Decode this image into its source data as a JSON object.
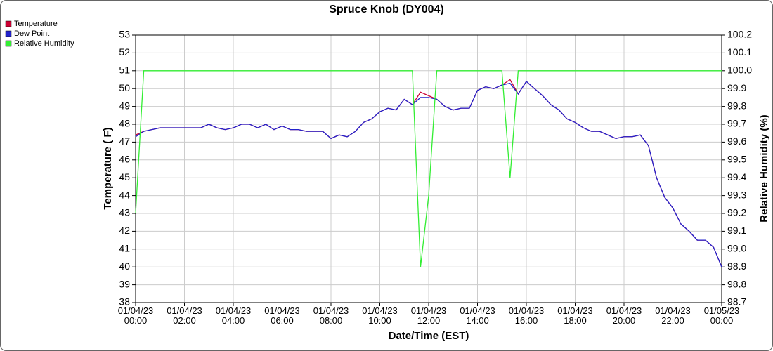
{
  "chart_data": {
    "type": "line",
    "title": "Spruce Knob (DY004)",
    "xlabel": "Date/Time (EST)",
    "ylabel": "Temperature ( F)",
    "y2label": "Relative Humidity (%)",
    "x": [
      "01/04/23 00:00",
      "01/04/23 00:20",
      "01/04/23 00:40",
      "01/04/23 01:00",
      "01/04/23 01:20",
      "01/04/23 01:40",
      "01/04/23 02:00",
      "01/04/23 02:20",
      "01/04/23 02:40",
      "01/04/23 03:00",
      "01/04/23 03:20",
      "01/04/23 03:40",
      "01/04/23 04:00",
      "01/04/23 04:20",
      "01/04/23 04:40",
      "01/04/23 05:00",
      "01/04/23 05:20",
      "01/04/23 05:40",
      "01/04/23 06:00",
      "01/04/23 06:20",
      "01/04/23 06:40",
      "01/04/23 07:00",
      "01/04/23 07:20",
      "01/04/23 07:40",
      "01/04/23 08:00",
      "01/04/23 08:20",
      "01/04/23 08:40",
      "01/04/23 09:00",
      "01/04/23 09:20",
      "01/04/23 09:40",
      "01/04/23 10:00",
      "01/04/23 10:20",
      "01/04/23 10:40",
      "01/04/23 11:00",
      "01/04/23 11:20",
      "01/04/23 11:40",
      "01/04/23 12:00",
      "01/04/23 12:20",
      "01/04/23 12:40",
      "01/04/23 13:00",
      "01/04/23 13:20",
      "01/04/23 13:40",
      "01/04/23 14:00",
      "01/04/23 14:20",
      "01/04/23 14:40",
      "01/04/23 15:00",
      "01/04/23 15:20",
      "01/04/23 15:40",
      "01/04/23 16:00",
      "01/04/23 16:20",
      "01/04/23 16:40",
      "01/04/23 17:00",
      "01/04/23 17:20",
      "01/04/23 17:40",
      "01/04/23 18:00",
      "01/04/23 18:20",
      "01/04/23 18:40",
      "01/04/23 19:00",
      "01/04/23 19:20",
      "01/04/23 19:40",
      "01/04/23 20:00",
      "01/04/23 20:20",
      "01/04/23 20:40",
      "01/04/23 21:00",
      "01/04/23 21:20",
      "01/04/23 21:40",
      "01/04/23 22:00",
      "01/04/23 22:20",
      "01/04/23 22:40",
      "01/04/23 23:00",
      "01/04/23 23:20",
      "01/04/23 23:40",
      "01/05/23 00:00"
    ],
    "series": [
      {
        "name": "Temperature",
        "color": "#cc0033",
        "values": [
          47.4,
          47.6,
          47.7,
          47.8,
          47.8,
          47.8,
          47.8,
          47.8,
          47.8,
          48.0,
          47.8,
          47.7,
          47.8,
          48.0,
          48.0,
          47.8,
          48.0,
          47.7,
          47.9,
          47.7,
          47.7,
          47.6,
          47.6,
          47.6,
          47.2,
          47.4,
          47.3,
          47.6,
          48.1,
          48.3,
          48.7,
          48.9,
          48.8,
          49.4,
          49.1,
          49.8,
          49.6,
          49.4,
          49.0,
          48.8,
          48.9,
          48.9,
          49.9,
          50.1,
          50.0,
          50.2,
          50.5,
          49.7,
          50.4,
          50.0,
          49.6,
          49.1,
          48.8,
          48.3,
          48.1,
          47.8,
          47.6,
          47.6,
          47.4,
          47.2,
          47.3,
          47.3,
          47.4,
          46.8,
          45.0,
          43.9,
          43.3,
          42.4,
          42.0,
          41.5,
          41.5,
          41.1,
          40.0
        ]
      },
      {
        "name": "Dew Point",
        "color": "#2222cc",
        "values": [
          47.3,
          47.6,
          47.7,
          47.8,
          47.8,
          47.8,
          47.8,
          47.8,
          47.8,
          48.0,
          47.8,
          47.7,
          47.8,
          48.0,
          48.0,
          47.8,
          48.0,
          47.7,
          47.9,
          47.7,
          47.7,
          47.6,
          47.6,
          47.6,
          47.2,
          47.4,
          47.3,
          47.6,
          48.1,
          48.3,
          48.7,
          48.9,
          48.8,
          49.4,
          49.1,
          49.5,
          49.5,
          49.4,
          49.0,
          48.8,
          48.9,
          48.9,
          49.9,
          50.1,
          50.0,
          50.2,
          50.3,
          49.7,
          50.4,
          50.0,
          49.6,
          49.1,
          48.8,
          48.3,
          48.1,
          47.8,
          47.6,
          47.6,
          47.4,
          47.2,
          47.3,
          47.3,
          47.4,
          46.8,
          45.0,
          43.9,
          43.3,
          42.4,
          42.0,
          41.5,
          41.5,
          41.1,
          40.0
        ]
      },
      {
        "name": "Relative Humidity",
        "color": "#33ee33",
        "axis": "y2",
        "values": [
          99.2,
          100,
          100,
          100,
          100,
          100,
          100,
          100,
          100,
          100,
          100,
          100,
          100,
          100,
          100,
          100,
          100,
          100,
          100,
          100,
          100,
          100,
          100,
          100,
          100,
          100,
          100,
          100,
          100,
          100,
          100,
          100,
          100,
          100,
          100,
          98.9,
          99.3,
          100,
          100,
          100,
          100,
          100,
          100,
          100,
          100,
          100,
          99.4,
          100,
          100,
          100,
          100,
          100,
          100,
          100,
          100,
          100,
          100,
          100,
          100,
          100,
          100,
          100,
          100,
          100,
          100,
          100,
          100,
          100,
          100,
          100,
          100,
          100,
          100
        ]
      }
    ],
    "xlim": [
      "01/04/23 00:00",
      "01/05/23 00:00"
    ],
    "xticks": [
      "01/04/23 00:00",
      "01/04/23 02:00",
      "01/04/23 04:00",
      "01/04/23 06:00",
      "01/04/23 08:00",
      "01/04/23 10:00",
      "01/04/23 12:00",
      "01/04/23 14:00",
      "01/04/23 16:00",
      "01/04/23 18:00",
      "01/04/23 20:00",
      "01/04/23 22:00",
      "01/05/23 00:00"
    ],
    "ylim": [
      38,
      53
    ],
    "yticks": [
      38,
      39,
      40,
      41,
      42,
      43,
      44,
      45,
      46,
      47,
      48,
      49,
      50,
      51,
      52,
      53
    ],
    "y2lim": [
      98.7,
      100.2
    ],
    "y2ticks": [
      98.7,
      98.8,
      98.9,
      {
        "value": 99,
        "label": "99.0"
      },
      99.1,
      99.2,
      99.3,
      99.4,
      99.5,
      99.6,
      99.7,
      99.8,
      99.9,
      {
        "value": 100,
        "label": "100.0"
      },
      100.1,
      100.2
    ],
    "grid": true,
    "legend": "top-left"
  }
}
